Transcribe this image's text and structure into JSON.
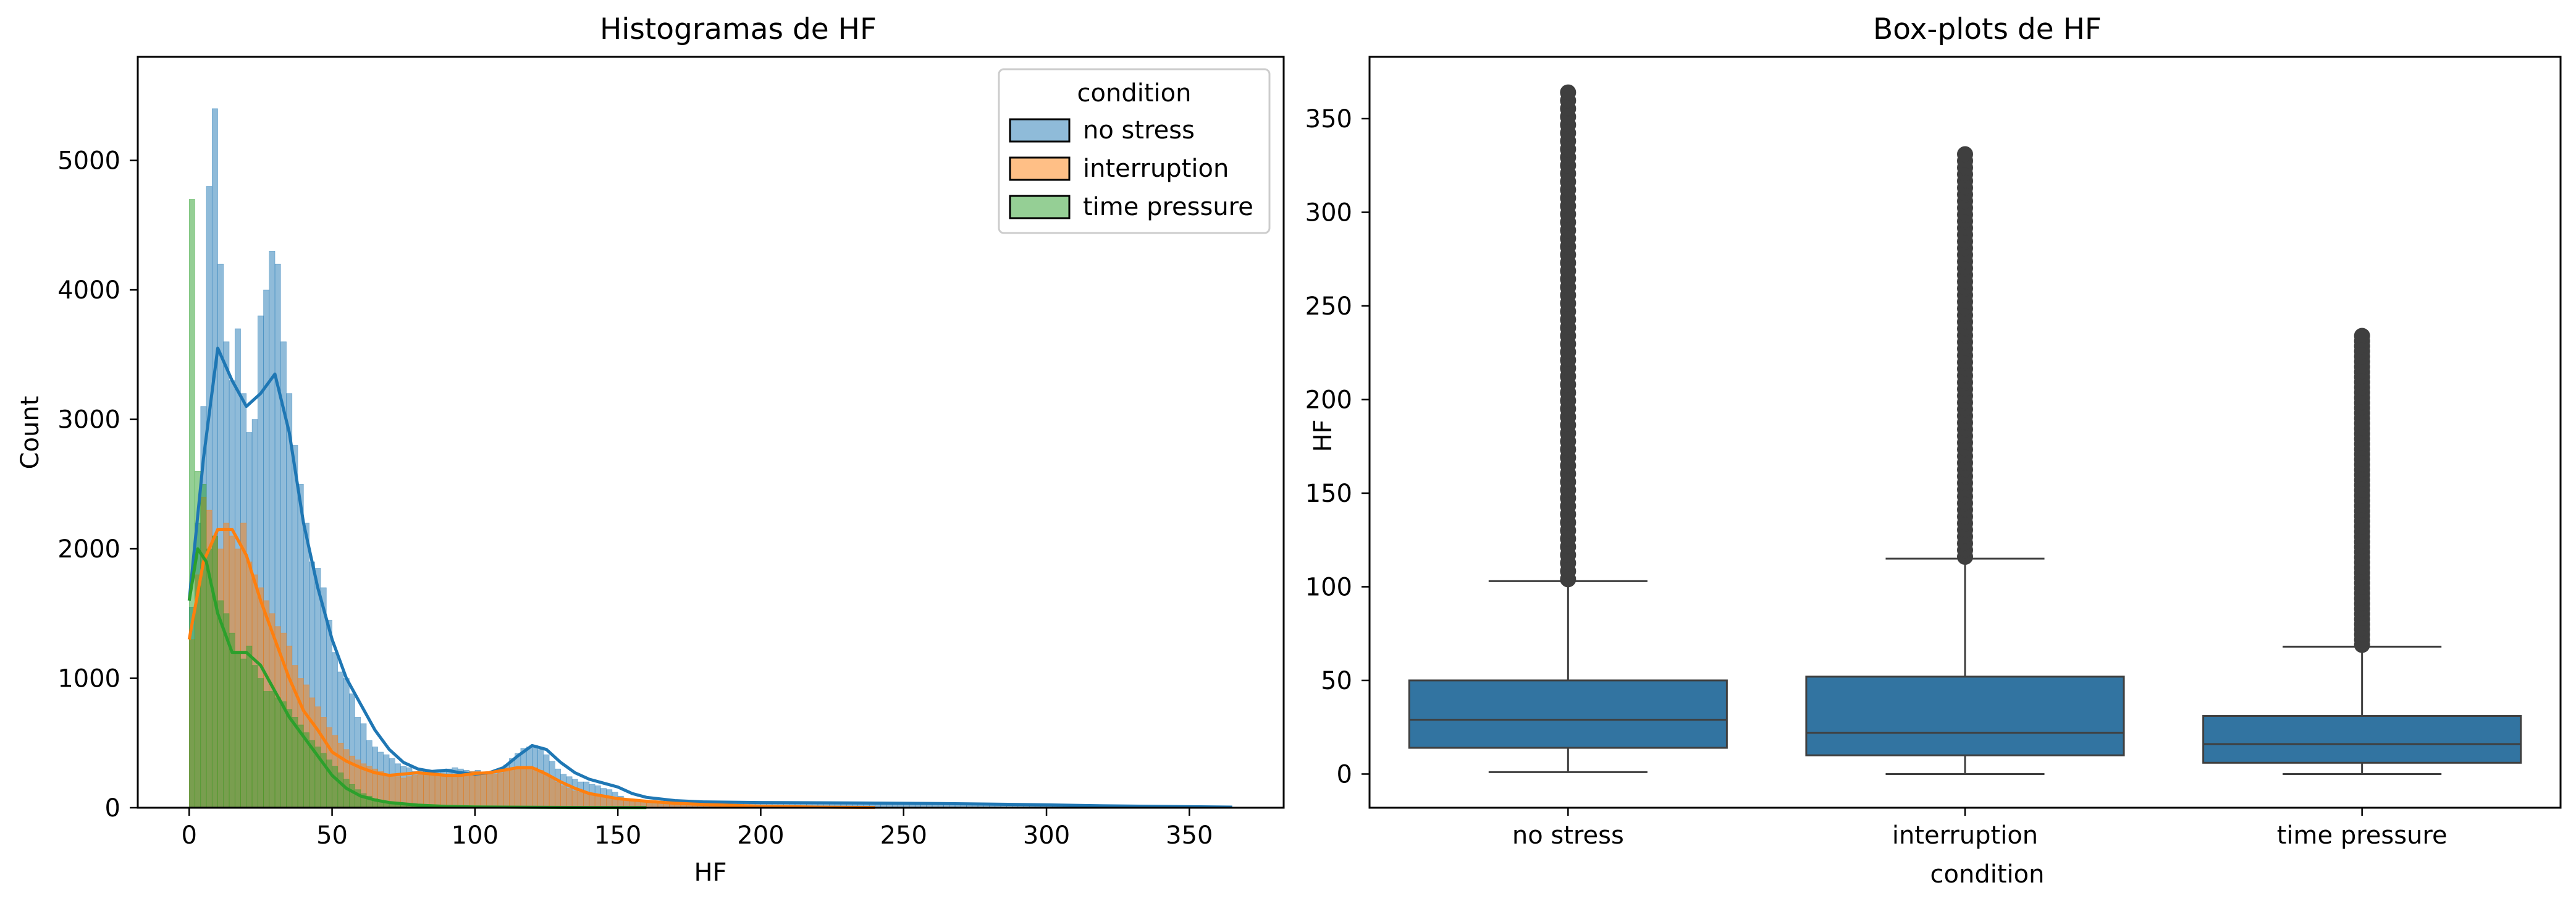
{
  "chart_data": [
    {
      "type": "histogram",
      "title": "Histogramas de HF",
      "xlabel": "HF",
      "ylabel": "Count",
      "xlim": [
        -18,
        383
      ],
      "ylim": [
        0,
        5800
      ],
      "xticks": [
        0,
        50,
        100,
        150,
        200,
        250,
        300,
        350
      ],
      "yticks": [
        0,
        1000,
        2000,
        3000,
        4000,
        5000
      ],
      "legend": {
        "title": "condition",
        "position": "top-right",
        "items": [
          {
            "label": "no stress",
            "color": "#1f77b4"
          },
          {
            "label": "interruption",
            "color": "#ff7f0e"
          },
          {
            "label": "time pressure",
            "color": "#2ca02c"
          }
        ]
      },
      "bins": [
        0,
        2,
        4,
        6,
        8,
        10,
        12,
        14,
        16,
        18,
        20,
        22,
        24,
        26,
        28,
        30,
        32,
        34,
        36,
        38,
        40,
        42,
        44,
        46,
        48,
        50,
        52,
        54,
        56,
        58,
        60,
        62,
        64,
        66,
        68,
        70,
        72,
        74,
        76,
        78,
        80,
        82,
        84,
        86,
        88,
        90,
        92,
        94,
        96,
        98,
        100,
        102,
        104,
        106,
        108,
        110,
        112,
        114,
        116,
        118,
        120,
        122,
        124,
        126,
        128,
        130,
        132,
        134,
        136,
        138,
        140,
        142,
        144,
        146,
        148,
        150,
        152,
        154,
        156,
        158,
        160,
        162,
        164,
        166,
        168,
        170,
        172,
        174,
        176,
        178,
        180,
        182,
        184,
        186,
        188,
        190,
        192,
        194,
        196,
        198,
        200,
        202,
        204,
        206,
        208,
        210,
        212,
        214,
        216,
        218,
        220,
        222,
        224,
        226,
        228,
        230,
        232,
        234,
        236,
        238,
        240,
        242,
        244,
        246,
        248,
        250,
        252,
        254,
        256,
        258,
        260,
        262,
        264,
        266,
        268,
        270,
        272,
        274,
        276,
        278,
        280,
        282,
        284,
        286,
        288,
        290,
        292,
        294,
        296,
        298,
        300,
        302,
        304,
        306,
        308,
        310,
        312,
        314,
        316,
        318,
        320,
        322,
        324,
        326,
        328,
        330,
        332,
        334,
        336,
        338,
        340,
        342,
        344,
        346,
        348,
        350,
        352,
        354,
        356,
        358,
        360,
        362,
        364
      ],
      "series": [
        {
          "name": "no stress",
          "color": "#1f77b4",
          "counts": [
            1550,
            2200,
            3100,
            4800,
            5400,
            4200,
            3600,
            3300,
            3700,
            3200,
            2900,
            3000,
            3800,
            4000,
            4300,
            4200,
            3600,
            3200,
            2800,
            2500,
            2200,
            1900,
            1850,
            1700,
            1450,
            1200,
            1050,
            1000,
            880,
            700,
            650,
            520,
            470,
            430,
            410,
            380,
            340,
            320,
            310,
            280,
            300,
            290,
            280,
            270,
            290,
            300,
            310,
            300,
            290,
            280,
            290,
            270,
            260,
            280,
            300,
            330,
            380,
            420,
            460,
            470,
            480,
            450,
            410,
            360,
            300,
            260,
            240,
            220,
            200,
            200,
            180,
            170,
            150,
            140,
            120,
            90,
            70,
            60,
            55,
            50,
            50,
            48,
            46,
            45,
            44,
            43,
            42,
            41,
            40,
            40,
            40,
            39,
            39,
            38,
            38,
            38,
            37,
            37,
            37,
            36,
            36,
            36,
            36,
            35,
            35,
            35,
            35,
            34,
            34,
            34,
            33,
            33,
            33,
            32,
            32,
            32,
            31,
            31,
            30,
            30,
            29,
            29,
            28,
            28,
            27,
            27,
            26,
            26,
            25,
            25,
            24,
            24,
            23,
            23,
            22,
            22,
            21,
            21,
            20,
            20,
            20,
            19,
            19,
            19,
            18,
            18,
            18,
            17,
            17,
            17,
            16,
            16,
            16,
            15,
            15,
            15,
            14,
            14,
            14,
            13,
            13,
            13,
            12,
            12,
            12,
            11,
            11,
            11,
            10,
            10,
            10,
            9,
            9,
            8,
            8,
            7,
            7,
            6
          ]
        },
        {
          "name": "interruption",
          "color": "#ff7f0e",
          "counts": [
            1300,
            1800,
            2400,
            2300,
            2100,
            2000,
            2200,
            2100,
            2000,
            2200,
            1900,
            1800,
            1700,
            1600,
            1500,
            1400,
            1350,
            1250,
            1100,
            1000,
            950,
            850,
            780,
            700,
            620,
            560,
            500,
            450,
            400,
            370,
            340,
            320,
            300,
            280,
            260,
            250,
            240,
            230,
            240,
            250,
            260,
            270,
            260,
            250,
            240,
            240,
            250,
            260,
            270,
            280,
            280,
            270,
            260,
            260,
            270,
            280,
            300,
            310,
            320,
            320,
            310,
            290,
            260,
            230,
            200,
            170,
            150,
            130,
            120,
            110,
            100,
            90,
            80,
            75,
            70,
            65,
            60,
            58,
            56,
            54,
            52,
            50,
            48,
            46,
            44,
            42,
            40,
            38,
            36,
            34,
            32,
            30,
            28,
            26,
            24,
            22,
            20,
            18,
            16,
            14,
            12,
            10,
            8,
            6,
            5,
            4,
            3,
            2,
            2,
            1,
            1,
            1,
            1,
            1,
            1,
            1,
            1,
            1,
            1,
            1,
            1,
            1,
            1,
            1,
            1,
            1,
            1,
            1,
            1,
            1,
            1,
            1,
            1,
            1,
            1,
            1,
            1,
            1,
            1,
            1,
            1,
            1,
            1,
            1,
            1,
            1,
            1,
            1,
            1,
            1,
            1,
            1,
            1,
            1,
            1,
            1,
            1,
            1,
            1,
            1,
            1,
            1,
            1,
            1,
            1,
            1,
            1,
            1,
            1,
            1,
            1,
            1,
            1,
            1,
            1,
            1,
            1,
            1,
            1,
            1,
            1
          ]
        },
        {
          "name": "time pressure",
          "color": "#2ca02c",
          "counts": [
            4700,
            2600,
            2500,
            2000,
            2100,
            1600,
            1500,
            1350,
            1200,
            1150,
            1250,
            1100,
            1000,
            900,
            900,
            850,
            820,
            760,
            700,
            640,
            580,
            520,
            470,
            420,
            370,
            320,
            270,
            220,
            180,
            140,
            110,
            90,
            70,
            55,
            45,
            35,
            28,
            22,
            18,
            14,
            12,
            10,
            8,
            7,
            6,
            5,
            4,
            3,
            3,
            2,
            2,
            2,
            2,
            2,
            2,
            2,
            2,
            2,
            2,
            2,
            2,
            2,
            2,
            2,
            2,
            2,
            2,
            2,
            2,
            2,
            2,
            2,
            2,
            2,
            2,
            2,
            2,
            2,
            2,
            2,
            2,
            2,
            2,
            2,
            2,
            2,
            2,
            2,
            2,
            2,
            2,
            2,
            2,
            2,
            2,
            2,
            2,
            2,
            2,
            2,
            2,
            2,
            2,
            2,
            2,
            2,
            2,
            2,
            2,
            2,
            2,
            2,
            2,
            2,
            2,
            2,
            2,
            2,
            2,
            2,
            2,
            2,
            2,
            2,
            2,
            2,
            2,
            2,
            2,
            2,
            2,
            2,
            2,
            2,
            2,
            2,
            2,
            2,
            2,
            2,
            2,
            2,
            2,
            2,
            2,
            2,
            2,
            2,
            2,
            2,
            2,
            2,
            2,
            2,
            2,
            2,
            2,
            2,
            2,
            2,
            2,
            2,
            2,
            2,
            2,
            2,
            2,
            2,
            2,
            2,
            2,
            2,
            2,
            2,
            2,
            2,
            2,
            2,
            2,
            2,
            2,
            2
          ]
        }
      ],
      "kde": [
        {
          "name": "no stress",
          "color": "#1f77b4",
          "x": [
            0,
            5,
            10,
            15,
            20,
            25,
            30,
            35,
            40,
            45,
            50,
            55,
            60,
            65,
            70,
            75,
            80,
            85,
            90,
            95,
            100,
            105,
            110,
            115,
            120,
            125,
            130,
            135,
            140,
            145,
            150,
            155,
            160,
            170,
            180,
            200,
            220,
            240,
            260,
            280,
            300,
            320,
            340,
            365
          ],
          "y": [
            1600,
            2700,
            3550,
            3300,
            3100,
            3200,
            3350,
            2900,
            2200,
            1700,
            1300,
            1000,
            800,
            600,
            450,
            350,
            300,
            280,
            290,
            270,
            260,
            270,
            310,
            400,
            480,
            450,
            350,
            270,
            220,
            190,
            160,
            110,
            80,
            55,
            45,
            40,
            38,
            36,
            33,
            28,
            22,
            15,
            10,
            5
          ]
        },
        {
          "name": "interruption",
          "color": "#ff7f0e",
          "x": [
            0,
            5,
            10,
            15,
            20,
            25,
            30,
            35,
            40,
            45,
            50,
            55,
            60,
            65,
            70,
            75,
            80,
            85,
            90,
            95,
            100,
            105,
            110,
            115,
            120,
            125,
            130,
            135,
            140,
            145,
            150,
            160,
            170,
            180,
            200,
            220,
            240
          ],
          "y": [
            1300,
            1900,
            2150,
            2150,
            1950,
            1600,
            1300,
            1000,
            750,
            600,
            430,
            360,
            310,
            270,
            250,
            260,
            270,
            260,
            250,
            250,
            265,
            270,
            290,
            310,
            310,
            260,
            200,
            150,
            110,
            90,
            70,
            50,
            35,
            25,
            12,
            5,
            2
          ]
        },
        {
          "name": "time pressure",
          "color": "#2ca02c",
          "x": [
            0,
            3,
            6,
            10,
            15,
            20,
            25,
            30,
            35,
            40,
            45,
            50,
            55,
            60,
            65,
            70,
            80,
            90,
            100,
            120,
            140,
            160
          ],
          "y": [
            1600,
            2000,
            1900,
            1500,
            1200,
            1200,
            1100,
            900,
            700,
            550,
            400,
            250,
            150,
            90,
            60,
            40,
            20,
            10,
            6,
            4,
            2,
            1
          ]
        }
      ]
    },
    {
      "type": "box",
      "title": "Box-plots de HF",
      "xlabel": "condition",
      "ylabel": "HF",
      "ylim": [
        -18,
        383
      ],
      "yticks": [
        0,
        50,
        100,
        150,
        200,
        250,
        300,
        350
      ],
      "categories": [
        "no stress",
        "interruption",
        "time pressure"
      ],
      "color": "#3274a1",
      "boxes": [
        {
          "category": "no stress",
          "whisker_low": 1,
          "q1": 14,
          "median": 29,
          "q3": 50,
          "whisker_high": 103,
          "outlier_min": 104,
          "outlier_max": 364
        },
        {
          "category": "interruption",
          "whisker_low": 0,
          "q1": 10,
          "median": 22,
          "q3": 52,
          "whisker_high": 115,
          "outlier_min": 116,
          "outlier_max": 331
        },
        {
          "category": "time pressure",
          "whisker_low": 0,
          "q1": 6,
          "median": 16,
          "q3": 31,
          "whisker_high": 68,
          "outlier_min": 69,
          "outlier_max": 234
        }
      ]
    }
  ]
}
